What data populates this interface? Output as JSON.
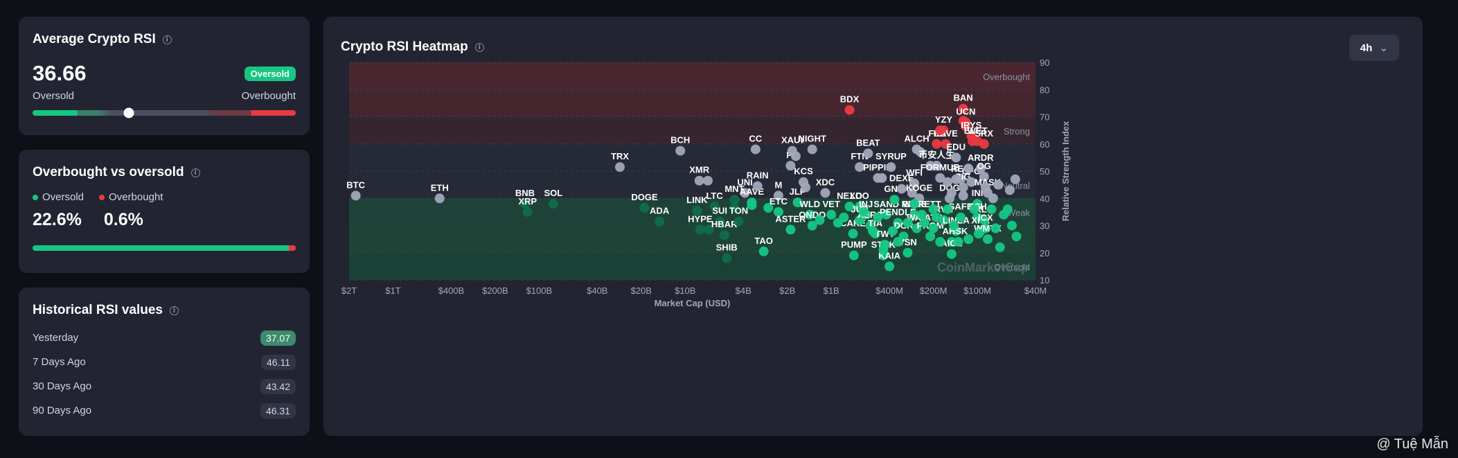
{
  "avg_card": {
    "title": "Average Crypto RSI",
    "value": "36.66",
    "badge": "Oversold",
    "label_left": "Oversold",
    "label_right": "Overbought",
    "knob_value": 36.66
  },
  "ovo_card": {
    "title": "Overbought vs oversold",
    "oversold_label": "Oversold",
    "overbought_label": "Overbought",
    "oversold_pct": "22.6%",
    "overbought_pct": "0.6%",
    "overbought_fraction": 0.026
  },
  "hist_card": {
    "title": "Historical RSI values",
    "rows": [
      {
        "label": "Yesterday",
        "value": "37.07"
      },
      {
        "label": "7 Days Ago",
        "value": "46.11"
      },
      {
        "label": "30 Days Ago",
        "value": "43.42"
      },
      {
        "label": "90 Days Ago",
        "value": "46.31"
      }
    ]
  },
  "main": {
    "title": "Crypto RSI Heatmap",
    "timeframe": "4h",
    "watermark": "CoinMarketCap"
  },
  "page_watermark": "@ Tuệ Mẫn",
  "colors": {
    "green": "#16c784",
    "red": "#ea3943",
    "neutral": "#a1a7bb"
  },
  "chart_data": {
    "type": "scatter",
    "title": "Crypto RSI Heatmap",
    "xlabel": "Market Cap (USD)",
    "ylabel": "Relative Strength Index",
    "x_scale": "log",
    "xlim": [
      40000000,
      2000000000000
    ],
    "ylim": [
      10,
      90
    ],
    "x_ticks": [
      {
        "v": 2000000000000,
        "l": "$2T"
      },
      {
        "v": 1000000000000,
        "l": "$1T"
      },
      {
        "v": 400000000000,
        "l": "$400B"
      },
      {
        "v": 200000000000,
        "l": "$200B"
      },
      {
        "v": 100000000000,
        "l": "$100B"
      },
      {
        "v": 40000000000,
        "l": "$40B"
      },
      {
        "v": 20000000000,
        "l": "$20B"
      },
      {
        "v": 10000000000,
        "l": "$10B"
      },
      {
        "v": 4000000000,
        "l": "$4B"
      },
      {
        "v": 2000000000,
        "l": "$2B"
      },
      {
        "v": 1000000000,
        "l": "$1B"
      },
      {
        "v": 400000000,
        "l": "$400M"
      },
      {
        "v": 200000000,
        "l": "$200M"
      },
      {
        "v": 100000000,
        "l": "$100M"
      },
      {
        "v": 40000000,
        "l": "$40M"
      }
    ],
    "y_ticks": [
      10,
      20,
      30,
      40,
      50,
      60,
      70,
      80,
      90
    ],
    "zones": [
      {
        "from": 80,
        "to": 90,
        "label": "Overbought",
        "color": "#4a2730"
      },
      {
        "from": 70,
        "to": 80,
        "label": "",
        "color": "#45262f"
      },
      {
        "from": 60,
        "to": 70,
        "label": "Strong",
        "color": "#35252f"
      },
      {
        "from": 40,
        "to": 60,
        "label": "Neutral",
        "color": "#262a36"
      },
      {
        "from": 30,
        "to": 40,
        "label": "Weak",
        "color": "#1f4238"
      },
      {
        "from": 20,
        "to": 30,
        "label": "",
        "color": "#1e4438"
      },
      {
        "from": 10,
        "to": 20,
        "label": "Oversold",
        "color": "#1b4035"
      }
    ],
    "points": [
      {
        "n": "BTC",
        "mc": 1800000000000,
        "rsi": 41
      },
      {
        "n": "ETH",
        "mc": 480000000000,
        "rsi": 40
      },
      {
        "n": "BNB",
        "mc": 125000000000,
        "rsi": 38
      },
      {
        "n": "XRP",
        "mc": 120000000000,
        "rsi": 35
      },
      {
        "n": "SOL",
        "mc": 80000000000,
        "rsi": 38
      },
      {
        "n": "TRX",
        "mc": 28000000000,
        "rsi": 51.5
      },
      {
        "n": "DOGE",
        "mc": 19000000000,
        "rsi": 36.5
      },
      {
        "n": "ADA",
        "mc": 15000000000,
        "rsi": 31.5
      },
      {
        "n": "BCH",
        "mc": 10800000000,
        "rsi": 57.5
      },
      {
        "n": "XMR",
        "mc": 8000000000,
        "rsi": 46.5
      },
      {
        "n": "",
        "mc": 7000000000,
        "rsi": 46.5
      },
      {
        "n": "LINK",
        "mc": 8300000000,
        "rsi": 35.5
      },
      {
        "n": "HYPE",
        "mc": 7900000000,
        "rsi": 28.5
      },
      {
        "n": "",
        "mc": 6900000000,
        "rsi": 28.5
      },
      {
        "n": "LTC",
        "mc": 6300000000,
        "rsi": 37
      },
      {
        "n": "SUI",
        "mc": 5800000000,
        "rsi": 31.5
      },
      {
        "n": "HBAR",
        "mc": 5400000000,
        "rsi": 26.5
      },
      {
        "n": "SHIB",
        "mc": 5200000000,
        "rsi": 18
      },
      {
        "n": "",
        "mc": 4600000000,
        "rsi": 36.5
      },
      {
        "n": "MNT",
        "mc": 4600000000,
        "rsi": 39.5
      },
      {
        "n": "TON",
        "mc": 4300000000,
        "rsi": 31.5
      },
      {
        "n": "UNI",
        "mc": 3900000000,
        "rsi": 42
      },
      {
        "n": "",
        "mc": 3500000000,
        "rsi": 37.5
      },
      {
        "n": "AAVE",
        "mc": 3500000000,
        "rsi": 38.5
      },
      {
        "n": "RAIN",
        "mc": 3200000000,
        "rsi": 44.5
      },
      {
        "n": "CC",
        "mc": 3300000000,
        "rsi": 58
      },
      {
        "n": "TAO",
        "mc": 2900000000,
        "rsi": 20.5
      },
      {
        "n": "",
        "mc": 2700000000,
        "rsi": 36.5
      },
      {
        "n": "M",
        "mc": 2300000000,
        "rsi": 41
      },
      {
        "n": "ETC",
        "mc": 2300000000,
        "rsi": 35
      },
      {
        "n": "ASTER",
        "mc": 1900000000,
        "rsi": 28.5
      },
      {
        "n": "PI",
        "mc": 1900000000,
        "rsi": 52
      },
      {
        "n": "XAUt",
        "mc": 1850000000,
        "rsi": 57.5
      },
      {
        "n": "",
        "mc": 1750000000,
        "rsi": 55.5
      },
      {
        "n": "JLP",
        "mc": 1700000000,
        "rsi": 38.5
      },
      {
        "n": "KCS",
        "mc": 1550000000,
        "rsi": 46
      },
      {
        "n": "",
        "mc": 1500000000,
        "rsi": 44
      },
      {
        "n": "NIGHT",
        "mc": 1350000000,
        "rsi": 58
      },
      {
        "n": "WLD",
        "mc": 1400000000,
        "rsi": 34
      },
      {
        "n": "ONDO",
        "mc": 1350000000,
        "rsi": 30
      },
      {
        "n": "",
        "mc": 1200000000,
        "rsi": 32
      },
      {
        "n": "XDC",
        "mc": 1100000000,
        "rsi": 42
      },
      {
        "n": "VET",
        "mc": 1000000000,
        "rsi": 34
      },
      {
        "n": "BDX",
        "mc": 750000000,
        "rsi": 72.5
      },
      {
        "n": "NEXO",
        "mc": 750000000,
        "rsi": 37
      },
      {
        "n": "CAKE",
        "mc": 710000000,
        "rsi": 27
      },
      {
        "n": "PUMP",
        "mc": 700000000,
        "rsi": 19
      },
      {
        "n": "LDO",
        "mc": 640000000,
        "rsi": 37
      },
      {
        "n": "JUP",
        "mc": 640000000,
        "rsi": 32
      },
      {
        "n": "INJ",
        "mc": 580000000,
        "rsi": 34
      },
      {
        "n": "FTN",
        "mc": 640000000,
        "rsi": 51.5
      },
      {
        "n": "BEAT",
        "mc": 560000000,
        "rsi": 56.5
      },
      {
        "n": "AERO",
        "mc": 540000000,
        "rsi": 30
      },
      {
        "n": "TIA",
        "mc": 500000000,
        "rsi": 27
      },
      {
        "n": "PIPPIN",
        "mc": 480000000,
        "rsi": 47.5
      },
      {
        "n": "",
        "mc": 450000000,
        "rsi": 47.5
      },
      {
        "n": "STRK",
        "mc": 440000000,
        "rsi": 19
      },
      {
        "n": "TWT",
        "mc": 430000000,
        "rsi": 23
      },
      {
        "n": "KAIA",
        "mc": 400000000,
        "rsi": 15
      },
      {
        "n": "SAND",
        "mc": 420000000,
        "rsi": 34
      },
      {
        "n": "SYRUP",
        "mc": 390000000,
        "rsi": 51.5
      },
      {
        "n": "GNO",
        "mc": 370000000,
        "rsi": 39.5
      },
      {
        "n": "PENDLE",
        "mc": 350000000,
        "rsi": 31
      },
      {
        "n": "DEXE",
        "mc": 330000000,
        "rsi": 43.5
      },
      {
        "n": "DCR",
        "mc": 320000000,
        "rsi": 26
      },
      {
        "n": "VSN",
        "mc": 300000000,
        "rsi": 20
      },
      {
        "n": "B",
        "mc": 280000000,
        "rsi": 42
      },
      {
        "n": "WFI",
        "mc": 270000000,
        "rsi": 45.5
      },
      {
        "n": "RUNE",
        "mc": 270000000,
        "rsi": 34
      },
      {
        "n": "WAL",
        "mc": 260000000,
        "rsi": 29
      },
      {
        "n": "KOGE",
        "mc": 250000000,
        "rsi": 40
      },
      {
        "n": "WBRETT",
        "mc": 240000000,
        "rsi": 34
      },
      {
        "n": "ALCH",
        "mc": 260000000,
        "rsi": 58
      },
      {
        "n": "",
        "mc": 245000000,
        "rsi": 57
      },
      {
        "n": "PROM",
        "mc": 210000000,
        "rsi": 26
      },
      {
        "n": "ATH",
        "mc": 200000000,
        "rsi": 29
      },
      {
        "n": "",
        "mc": 210000000,
        "rsi": 52
      },
      {
        "n": "币安人生",
        "mc": 190000000,
        "rsi": 52
      },
      {
        "n": "FORMUB",
        "mc": 180000000,
        "rsi": 47.5
      },
      {
        "n": "FLZ",
        "mc": 190000000,
        "rsi": 60
      },
      {
        "n": "YZY",
        "mc": 170000000,
        "rsi": 65
      },
      {
        "n": "RAVE",
        "mc": 165000000,
        "rsi": 60
      },
      {
        "n": "",
        "mc": 180000000,
        "rsi": 65
      },
      {
        "n": "RVN",
        "mc": 170000000,
        "rsi": 32
      },
      {
        "n": "DOG",
        "mc": 155000000,
        "rsi": 40
      },
      {
        "n": "AKT",
        "mc": 150000000,
        "rsi": 24
      },
      {
        "n": "AIOZ",
        "mc": 150000000,
        "rsi": 19.5
      },
      {
        "n": "LINEA",
        "mc": 140000000,
        "rsi": 28
      },
      {
        "n": "HSK",
        "mc": 135000000,
        "rsi": 24
      },
      {
        "n": "SAFE",
        "mc": 130000000,
        "rsi": 33
      },
      {
        "n": "EDU",
        "mc": 140000000,
        "rsi": 55
      },
      {
        "n": "REQ",
        "mc": 130000000,
        "rsi": 47
      },
      {
        "n": "ZIG",
        "mc": 125000000,
        "rsi": 44
      },
      {
        "n": "H",
        "mc": 125000000,
        "rsi": 68.5
      },
      {
        "n": "BAN",
        "mc": 125000000,
        "rsi": 73
      },
      {
        "n": "UCN",
        "mc": 120000000,
        "rsi": 68
      },
      {
        "n": "",
        "mc": 120000000,
        "rsi": 66.5
      },
      {
        "n": "IRYS",
        "mc": 110000000,
        "rsi": 63
      },
      {
        "n": "ELF",
        "mc": 108000000,
        "rsi": 61
      },
      {
        "n": "WET",
        "mc": 100000000,
        "rsi": 61
      },
      {
        "n": "SRX",
        "mc": 90000000,
        "rsi": 60
      },
      {
        "n": "CFG",
        "mc": 110000000,
        "rsi": 46
      },
      {
        "n": "INI",
        "mc": 100000000,
        "rsi": 38
      },
      {
        "n": "XCH",
        "mc": 100000000,
        "rsi": 33
      },
      {
        "n": "XPR",
        "mc": 95000000,
        "rsi": 28
      },
      {
        "n": "RLC",
        "mc": 90000000,
        "rsi": 32
      },
      {
        "n": "ICX",
        "mc": 88000000,
        "rsi": 29
      },
      {
        "n": "WMTX",
        "mc": 85000000,
        "rsi": 25
      },
      {
        "n": "ARDR",
        "mc": 95000000,
        "rsi": 51
      },
      {
        "n": "OG",
        "mc": 90000000,
        "rsi": 48
      },
      {
        "n": "MASK",
        "mc": 85000000,
        "rsi": 42
      },
      {
        "n": "",
        "mc": 55000000,
        "rsi": 47
      },
      {
        "n": "",
        "mc": 60000000,
        "rsi": 43
      },
      {
        "n": "",
        "mc": 62000000,
        "rsi": 36
      },
      {
        "n": "",
        "mc": 58000000,
        "rsi": 30
      },
      {
        "n": "",
        "mc": 54000000,
        "rsi": 26
      },
      {
        "n": "",
        "mc": 70000000,
        "rsi": 22
      },
      {
        "n": "",
        "mc": 66000000,
        "rsi": 34
      },
      {
        "n": "",
        "mc": 75000000,
        "rsi": 29
      },
      {
        "n": "",
        "mc": 80000000,
        "rsi": 36
      },
      {
        "n": "",
        "mc": 72000000,
        "rsi": 45
      },
      {
        "n": "",
        "mc": 78000000,
        "rsi": 40
      },
      {
        "n": "",
        "mc": 350000000,
        "rsi": 24
      },
      {
        "n": "",
        "mc": 300000000,
        "rsi": 31
      },
      {
        "n": "",
        "mc": 230000000,
        "rsi": 31
      },
      {
        "n": "",
        "mc": 200000000,
        "rsi": 36
      },
      {
        "n": "",
        "mc": 180000000,
        "rsi": 24
      },
      {
        "n": "",
        "mc": 160000000,
        "rsi": 36
      },
      {
        "n": "",
        "mc": 145000000,
        "rsi": 30
      },
      {
        "n": "",
        "mc": 115000000,
        "rsi": 25
      },
      {
        "n": "",
        "mc": 105000000,
        "rsi": 36
      },
      {
        "n": "",
        "mc": 98000000,
        "rsi": 27
      },
      {
        "n": "",
        "mc": 480000000,
        "rsi": 33
      },
      {
        "n": "",
        "mc": 520000000,
        "rsi": 28
      },
      {
        "n": "",
        "mc": 900000000,
        "rsi": 31
      },
      {
        "n": "",
        "mc": 820000000,
        "rsi": 33
      },
      {
        "n": "",
        "mc": 600000000,
        "rsi": 35
      },
      {
        "n": "",
        "mc": 380000000,
        "rsi": 28
      },
      {
        "n": "",
        "mc": 440000000,
        "rsi": 21
      },
      {
        "n": "",
        "mc": 270000000,
        "rsi": 38
      },
      {
        "n": "",
        "mc": 190000000,
        "rsi": 33
      },
      {
        "n": "",
        "mc": 150000000,
        "rsi": 42
      },
      {
        "n": "",
        "mc": 125000000,
        "rsi": 41
      },
      {
        "n": "",
        "mc": 115000000,
        "rsi": 51
      },
      {
        "n": "",
        "mc": 140000000,
        "rsi": 47
      },
      {
        "n": "",
        "mc": 160000000,
        "rsi": 46
      },
      {
        "n": "",
        "mc": 88000000,
        "rsi": 44
      }
    ]
  }
}
